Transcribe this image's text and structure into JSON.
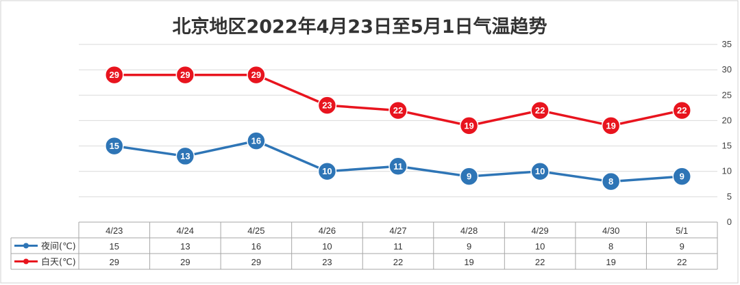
{
  "chart_data": {
    "type": "line",
    "title": "北京地区2022年4月23日至5月1日气温趋势",
    "categories": [
      "4/23",
      "4/24",
      "4/25",
      "4/26",
      "4/27",
      "4/28",
      "4/29",
      "4/30",
      "5/1"
    ],
    "series": [
      {
        "name": "夜间(℃)",
        "color": "#2e75b6",
        "values": [
          15,
          13,
          16,
          10,
          11,
          9,
          10,
          8,
          9
        ]
      },
      {
        "name": "白天(℃)",
        "color": "#e8141e",
        "values": [
          29,
          29,
          29,
          23,
          22,
          19,
          22,
          19,
          22
        ]
      }
    ],
    "ylim": [
      0,
      35
    ],
    "yticks": [
      0,
      5,
      10,
      15,
      20,
      25,
      30,
      35
    ],
    "y_axis_side": "right",
    "grid": true,
    "legend": "data-table-left",
    "data_table": true
  }
}
